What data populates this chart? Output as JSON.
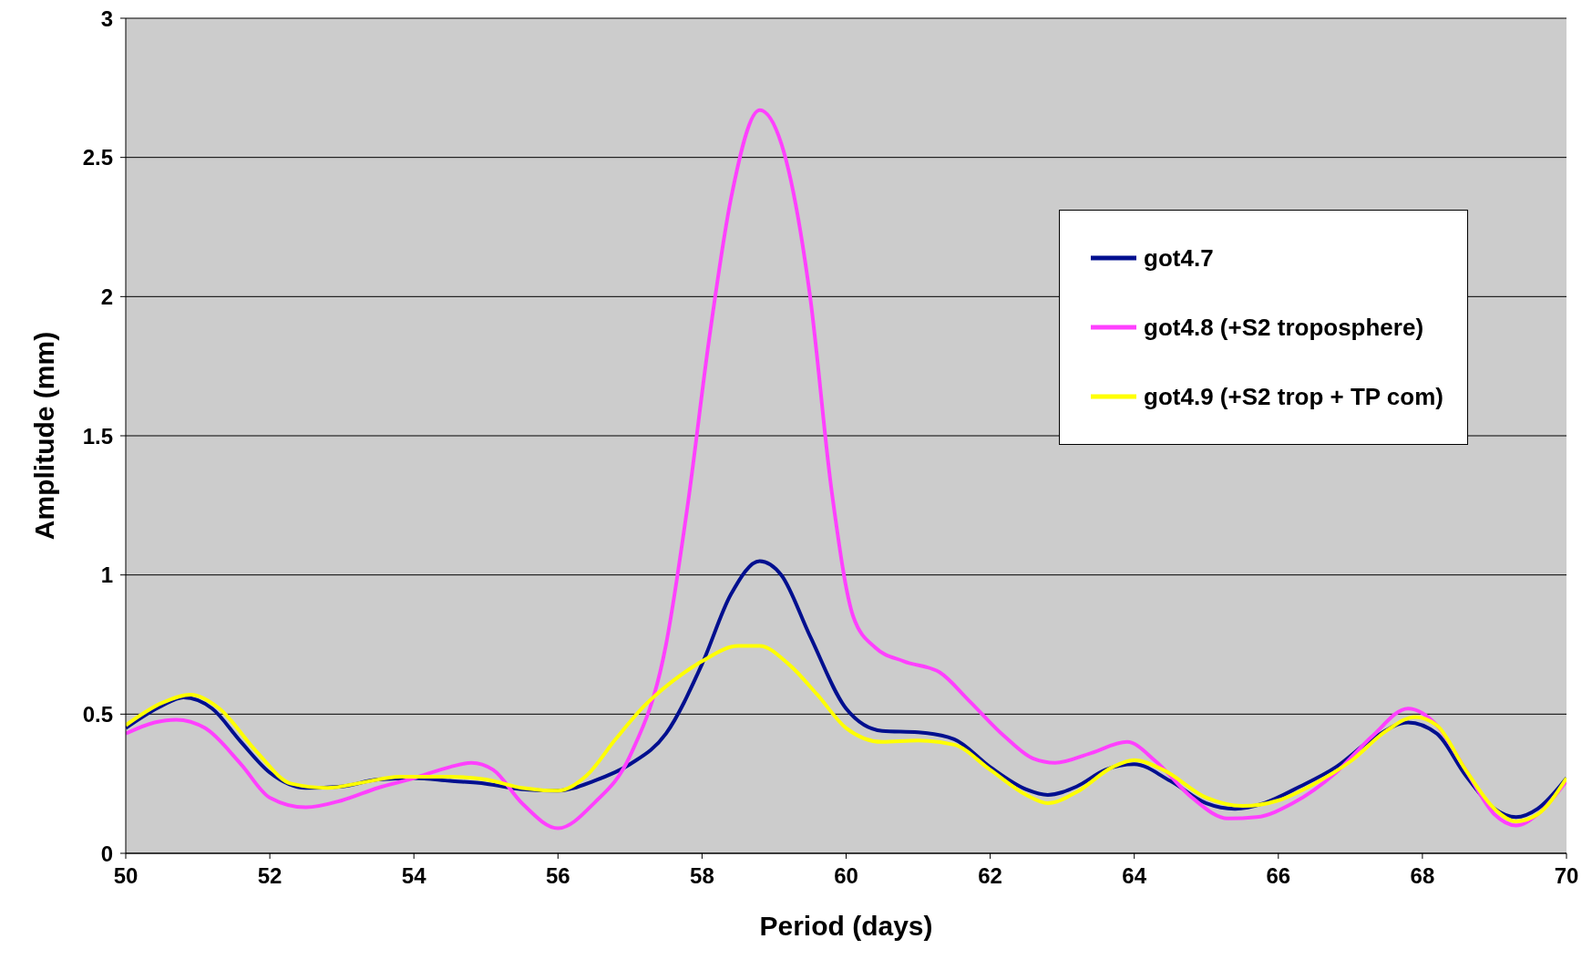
{
  "chart_data": {
    "type": "line",
    "xlabel": "Period (days)",
    "ylabel": "Amplitude (mm)",
    "xlim": [
      50,
      70
    ],
    "xticks": [
      50,
      52,
      54,
      56,
      58,
      60,
      62,
      64,
      66,
      68,
      70
    ],
    "ylim": [
      0,
      3
    ],
    "yticks": [
      0,
      0.5,
      1,
      1.5,
      2,
      2.5,
      3
    ],
    "grid": "y",
    "legend": "top right",
    "marker": "none",
    "line_style": "solid",
    "series": [
      {
        "name": "got4.7",
        "color": "#000f8f",
        "x": [
          50,
          50.5,
          50.8,
          51.2,
          51.6,
          52,
          52.5,
          53,
          53.5,
          54,
          54.5,
          55,
          55.5,
          56,
          56.5,
          57,
          57.5,
          58,
          58.4,
          58.8,
          59.1,
          59.5,
          60,
          60.5,
          61,
          61.5,
          62,
          62.5,
          62.8,
          63.2,
          63.6,
          64,
          64.5,
          65,
          65.4,
          65.8,
          66.3,
          66.8,
          67.3,
          67.8,
          68.2,
          68.6,
          69,
          69.3,
          69.6,
          70
        ],
        "values": [
          0.45,
          0.53,
          0.56,
          0.52,
          0.4,
          0.29,
          0.235,
          0.24,
          0.265,
          0.27,
          0.26,
          0.25,
          0.23,
          0.225,
          0.26,
          0.32,
          0.43,
          0.68,
          0.93,
          1.05,
          1.0,
          0.78,
          0.52,
          0.44,
          0.435,
          0.41,
          0.31,
          0.23,
          0.21,
          0.24,
          0.3,
          0.32,
          0.26,
          0.18,
          0.16,
          0.18,
          0.24,
          0.31,
          0.41,
          0.47,
          0.43,
          0.28,
          0.16,
          0.13,
          0.16,
          0.27
        ]
      },
      {
        "name": "got4.8 (+S2 troposphere)",
        "color": "#ff40ff",
        "x": [
          50,
          50.4,
          50.7,
          51.1,
          51.6,
          52,
          52.5,
          53,
          53.5,
          54,
          54.5,
          54.8,
          55.1,
          55.5,
          56,
          56.5,
          57,
          57.5,
          57.8,
          58.1,
          58.4,
          58.8,
          59.1,
          59.5,
          59.8,
          60.1,
          60.4,
          60.8,
          61.3,
          61.7,
          62.2,
          62.6,
          62.9,
          63.4,
          63.9,
          64.3,
          64.8,
          65.3,
          65.7,
          66.2,
          66.8,
          67.3,
          67.8,
          68.2,
          68.6,
          69,
          69.3,
          69.6,
          70
        ],
        "values": [
          0.43,
          0.47,
          0.48,
          0.45,
          0.32,
          0.2,
          0.165,
          0.19,
          0.235,
          0.27,
          0.31,
          0.325,
          0.3,
          0.18,
          0.09,
          0.18,
          0.35,
          0.75,
          1.25,
          1.85,
          2.35,
          2.67,
          2.55,
          2.0,
          1.3,
          0.85,
          0.74,
          0.69,
          0.65,
          0.55,
          0.42,
          0.34,
          0.325,
          0.36,
          0.4,
          0.33,
          0.2,
          0.125,
          0.13,
          0.18,
          0.29,
          0.42,
          0.52,
          0.46,
          0.3,
          0.14,
          0.1,
          0.14,
          0.26
        ]
      },
      {
        "name": "got4.9 (+S2 trop + TP com)",
        "color": "#ffff00",
        "x": [
          50,
          50.5,
          50.9,
          51.3,
          51.8,
          52.3,
          52.8,
          53.3,
          53.8,
          54.5,
          55,
          55.5,
          56,
          56.4,
          56.8,
          57.2,
          57.6,
          58,
          58.5,
          58.8,
          59.2,
          59.6,
          60,
          60.5,
          61,
          61.5,
          62,
          62.5,
          62.8,
          63.2,
          63.7,
          64,
          64.4,
          65,
          65.5,
          66,
          66.5,
          67,
          67.5,
          67.9,
          68.2,
          68.6,
          69,
          69.3,
          69.6,
          70
        ],
        "values": [
          0.46,
          0.54,
          0.57,
          0.52,
          0.37,
          0.25,
          0.235,
          0.255,
          0.275,
          0.275,
          0.265,
          0.235,
          0.225,
          0.28,
          0.41,
          0.53,
          0.62,
          0.69,
          0.745,
          0.745,
          0.68,
          0.57,
          0.45,
          0.4,
          0.405,
          0.39,
          0.3,
          0.21,
          0.18,
          0.22,
          0.31,
          0.335,
          0.3,
          0.2,
          0.17,
          0.19,
          0.25,
          0.33,
          0.44,
          0.49,
          0.46,
          0.3,
          0.16,
          0.115,
          0.14,
          0.27
        ]
      }
    ]
  }
}
